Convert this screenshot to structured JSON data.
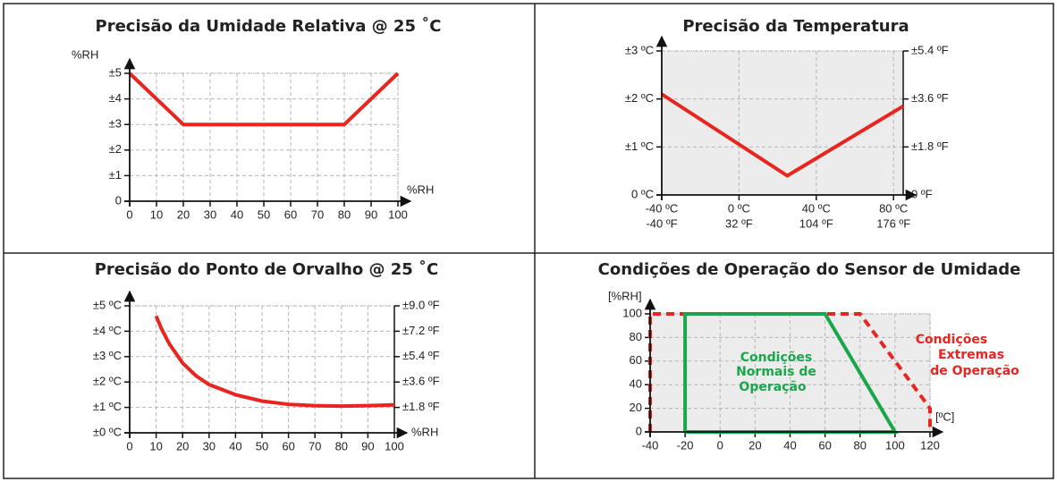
{
  "chart_data": [
    {
      "type": "line",
      "title": "Precisão da Umidade Relativa @ 25 ˚C",
      "ylabel": "%RH",
      "xlabel": "%RH",
      "xlim": [
        0,
        100
      ],
      "ylim": [
        0,
        5
      ],
      "xticks": [
        0,
        10,
        20,
        30,
        40,
        50,
        60,
        70,
        80,
        90,
        100
      ],
      "yticks": [
        0,
        {
          "value": 1,
          "label": "±1"
        },
        {
          "value": 2,
          "label": "±2"
        },
        {
          "value": 3,
          "label": "±3"
        },
        {
          "value": 4,
          "label": "±4"
        },
        {
          "value": 5,
          "label": "±5"
        }
      ],
      "grid": true,
      "plot_background": "#ffffff",
      "series": [
        {
          "color": "#e8251f",
          "x": [
            0,
            20,
            80,
            100
          ],
          "values": [
            5,
            3,
            3,
            5
          ]
        }
      ]
    },
    {
      "type": "line",
      "title": "Precisão da Temperatura",
      "xlim": [
        -40,
        85
      ],
      "ylim": [
        0,
        3
      ],
      "y2lim": [
        0,
        5.4
      ],
      "xticks": [
        {
          "value": -40,
          "label": "-40 ºC"
        },
        {
          "value": 0,
          "label": "0 ºC"
        },
        {
          "value": 40,
          "label": "40 ºC"
        },
        {
          "value": 80,
          "label": "80 ºC"
        }
      ],
      "xtick_sublabels": [
        "-40 ºF",
        "32 ºF",
        "104 ºF",
        "176 ºF"
      ],
      "yticks": [
        {
          "value": 0,
          "label": "0 ºC"
        },
        {
          "value": 1,
          "label": "±1 ºC"
        },
        {
          "value": 2,
          "label": "±2 ºC"
        },
        {
          "value": 3,
          "label": "±3 ºC"
        }
      ],
      "y2ticks": [
        {
          "value": 0,
          "label": "0 ºF"
        },
        {
          "value": 1.8,
          "label": "±1.8 ºF"
        },
        {
          "value": 3.6,
          "label": "±3.6 ºF"
        },
        {
          "value": 5.4,
          "label": "±5.4 ºF"
        }
      ],
      "grid": true,
      "plot_background": "#ececec",
      "series": [
        {
          "color": "#e8251f",
          "x": [
            -40,
            25,
            85
          ],
          "values": [
            2.1,
            0.4,
            1.85
          ]
        }
      ]
    },
    {
      "type": "line",
      "title": "Precisão do Ponto de Orvalho @ 25 ˚C",
      "xlabel": "%RH",
      "xlim": [
        0,
        100
      ],
      "ylim": [
        0,
        5
      ],
      "y2lim": [
        0,
        9
      ],
      "xticks": [
        0,
        10,
        20,
        30,
        40,
        50,
        60,
        70,
        80,
        90,
        100
      ],
      "yticks": [
        {
          "value": 0,
          "label": "±0 ºC"
        },
        {
          "value": 1,
          "label": "±1 ºC"
        },
        {
          "value": 2,
          "label": "±2 ºC"
        },
        {
          "value": 3,
          "label": "±3 ºC"
        },
        {
          "value": 4,
          "label": "±4 ºC"
        },
        {
          "value": 5,
          "label": "±5 ºC"
        }
      ],
      "y2ticks": [
        {
          "value": 1.8,
          "label": "±1.8 ºF"
        },
        {
          "value": 3.6,
          "label": "±3.6 ºF"
        },
        {
          "value": 5.4,
          "label": "±5.4 ºF"
        },
        {
          "value": 7.2,
          "label": "±7.2 ºF"
        },
        {
          "value": 9,
          "label": "±9.0 ºF"
        }
      ],
      "grid": true,
      "plot_background": "#ffffff",
      "series": [
        {
          "color": "#e8251f",
          "x": [
            10,
            12,
            15,
            20,
            25,
            30,
            40,
            50,
            60,
            70,
            80,
            90,
            100
          ],
          "values": [
            4.6,
            4.1,
            3.5,
            2.75,
            2.25,
            1.9,
            1.5,
            1.25,
            1.12,
            1.07,
            1.05,
            1.07,
            1.1
          ]
        }
      ]
    },
    {
      "type": "line",
      "title": "Condições de Operação do Sensor de Umidade",
      "ylabel": "[%RH]",
      "xlabel": "[ºC]",
      "xlim": [
        -40,
        120
      ],
      "ylim": [
        0,
        100
      ],
      "xticks": [
        -40,
        -20,
        0,
        20,
        40,
        60,
        80,
        100,
        120
      ],
      "yticks": [
        0,
        20,
        40,
        60,
        80,
        100
      ],
      "grid": true,
      "plot_background": "#ececec",
      "series": [
        {
          "color": "#e8251f",
          "dash": true,
          "x": [
            -40,
            -40,
            80,
            120,
            120
          ],
          "values": [
            0,
            100,
            100,
            20,
            0
          ]
        },
        {
          "color": "#1aa64a",
          "x": [
            -20,
            -20,
            60,
            100,
            -20
          ],
          "values": [
            0,
            100,
            100,
            0,
            0
          ]
        }
      ],
      "annotations": [
        {
          "text_lines": [
            "Condições",
            "Normais de",
            "Operação"
          ],
          "color": "#1aa64a"
        },
        {
          "text_lines": [
            "Condições",
            "Extremas",
            "de Operação"
          ],
          "color": "#e8251f"
        }
      ]
    }
  ]
}
